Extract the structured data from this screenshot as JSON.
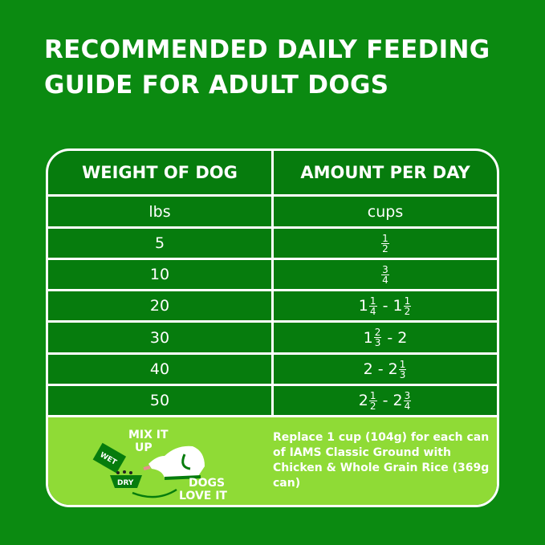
{
  "title": "RECOMMENDED DAILY FEEDING GUIDE FOR ADULT DOGS",
  "table": {
    "headers": [
      "WEIGHT OF DOG",
      "AMOUNT PER DAY"
    ],
    "units": [
      "lbs",
      "cups"
    ],
    "rows": [
      {
        "weight": "5",
        "amount": "1/2"
      },
      {
        "weight": "10",
        "amount": "3/4"
      },
      {
        "weight": "20",
        "amount": "1 1/4 - 1 1/2"
      },
      {
        "weight": "30",
        "amount": "1 2/3 - 2"
      },
      {
        "weight": "40",
        "amount": "2 - 2 1/3"
      },
      {
        "weight": "50",
        "amount": "2 1/2 - 2 3/4"
      }
    ]
  },
  "promo": {
    "mix_label": "MIX IT UP",
    "wet_label": "WET",
    "dry_label": "DRY",
    "dogs_label": "DOGS LOVE IT",
    "note": "Replace 1 cup (104g) for each can of IAMS Classic Ground with Chicken & Whole Grain Rice (369g can)"
  },
  "colors": {
    "background": "#0b8a11",
    "table": "#067c0d",
    "promo": "#8fdb36"
  }
}
